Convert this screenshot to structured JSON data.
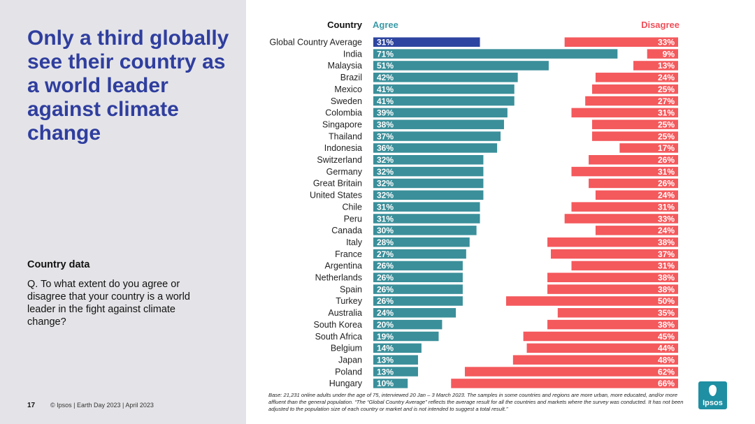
{
  "slide": {
    "title": "Only a third globally see their country as a world leader against climate change",
    "country_data_heading": "Country data",
    "question": "Q. To what extent do you agree or disagree that your country is a world leader in the fight against climate change?",
    "page_number": "17",
    "footer": "© Ipsos | Earth Day 2023 | April 2023",
    "base_note": "Base: 21,231 online adults under the age of 75, interviewed 20 Jan – 3 March 2023. The samples in some countries and regions are more urban, more educated, and/or more affluent than the general population. “The “Global Country Average” reflects the average result for all the countries and markets where the survey was conducted. It has not been adjusted to the population size of each country or market and is not intended to suggest a total result.”",
    "logo_text": "Ipsos"
  },
  "colors": {
    "agree": "#3a8f9a",
    "agree_highlight": "#2d45a0",
    "disagree": "#f4595c",
    "agree_header": "#3a9aa6",
    "disagree_header": "#f0505a",
    "title": "#2f3e9e"
  },
  "chart_data": {
    "type": "bar",
    "orientation": "horizontal-diverging",
    "headers": {
      "category": "Country",
      "agree": "Agree",
      "disagree": "Disagree"
    },
    "categories": [
      "Global Country Average",
      "India",
      "Malaysia",
      "Brazil",
      "Mexico",
      "Sweden",
      "Colombia",
      "Singapore",
      "Thailand",
      "Indonesia",
      "Switzerland",
      "Germany",
      "Great Britain",
      "United States",
      "Chile",
      "Peru",
      "Canada",
      "Italy",
      "France",
      "Argentina",
      "Netherlands",
      "Spain",
      "Turkey",
      "Australia",
      "South Korea",
      "South Africa",
      "Belgium",
      "Japan",
      "Poland",
      "Hungary"
    ],
    "series": [
      {
        "name": "Agree",
        "unit": "%",
        "values": [
          31,
          71,
          51,
          42,
          41,
          41,
          39,
          38,
          37,
          36,
          32,
          32,
          32,
          32,
          31,
          31,
          30,
          28,
          27,
          26,
          26,
          26,
          26,
          24,
          20,
          19,
          14,
          13,
          13,
          10
        ]
      },
      {
        "name": "Disagree",
        "unit": "%",
        "values": [
          33,
          9,
          13,
          24,
          25,
          27,
          31,
          25,
          25,
          17,
          26,
          31,
          26,
          24,
          31,
          33,
          24,
          38,
          37,
          31,
          38,
          38,
          50,
          35,
          38,
          45,
          44,
          48,
          62,
          66
        ]
      }
    ],
    "highlight_category": "Global Country Average"
  }
}
